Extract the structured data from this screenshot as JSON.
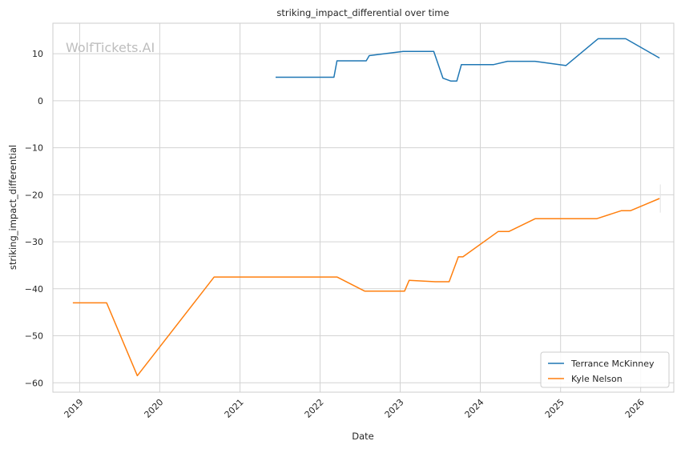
{
  "watermark": "WolfTickets.AI",
  "chart_data": {
    "type": "line",
    "title": "striking_impact_differential over time",
    "xlabel": "Date",
    "ylabel": "striking_impact_differential",
    "xlim": [
      "2018-09-01",
      "2026-06-01"
    ],
    "ylim": [
      -62,
      16.5
    ],
    "x_ticks": [
      "2019-01-01",
      "2020-01-01",
      "2021-01-01",
      "2022-01-01",
      "2023-01-01",
      "2024-01-01",
      "2025-01-01",
      "2026-01-01"
    ],
    "x_tick_labels": [
      "2019",
      "2020",
      "2021",
      "2022",
      "2023",
      "2024",
      "2025",
      "2026"
    ],
    "y_ticks": [
      10,
      0,
      -10,
      -20,
      -30,
      -40,
      -50,
      -60
    ],
    "y_tick_labels": [
      "10",
      "0",
      "−10",
      "−20",
      "−30",
      "−40",
      "−50",
      "−60"
    ],
    "grid": true,
    "legend_position": "lower-right",
    "series": [
      {
        "name": "Terrance McKinney",
        "color": "#1f77b4",
        "points": [
          [
            "2021-06-12",
            5.0
          ],
          [
            "2022-03-05",
            5.0
          ],
          [
            "2022-03-19",
            8.5
          ],
          [
            "2022-07-30",
            8.5
          ],
          [
            "2022-08-13",
            9.6
          ],
          [
            "2023-01-14",
            10.5
          ],
          [
            "2023-06-03",
            10.5
          ],
          [
            "2023-07-15",
            4.8
          ],
          [
            "2023-08-19",
            4.2
          ],
          [
            "2023-09-16",
            4.2
          ],
          [
            "2023-10-07",
            7.7
          ],
          [
            "2024-03-02",
            7.7
          ],
          [
            "2024-05-04",
            8.4
          ],
          [
            "2024-09-07",
            8.4
          ],
          [
            "2025-01-25",
            7.5
          ],
          [
            "2025-06-21",
            13.2
          ],
          [
            "2025-10-25",
            13.2
          ],
          [
            "2026-03-28",
            9.1
          ]
        ]
      },
      {
        "name": "Kyle Nelson",
        "color": "#ff7f0e",
        "points": [
          [
            "2018-12-01",
            -43.0
          ],
          [
            "2019-05-04",
            -43.0
          ],
          [
            "2019-09-21",
            -58.5
          ],
          [
            "2020-09-05",
            -37.5
          ],
          [
            "2022-03-19",
            -37.5
          ],
          [
            "2022-07-23",
            -40.5
          ],
          [
            "2023-01-21",
            -40.5
          ],
          [
            "2023-02-11",
            -38.2
          ],
          [
            "2023-06-10",
            -38.5
          ],
          [
            "2023-08-12",
            -38.5
          ],
          [
            "2023-09-23",
            -33.2
          ],
          [
            "2023-10-14",
            -33.2
          ],
          [
            "2024-03-23",
            -27.8
          ],
          [
            "2024-05-11",
            -27.8
          ],
          [
            "2024-09-07",
            -25.1
          ],
          [
            "2025-06-14",
            -25.1
          ],
          [
            "2025-10-04",
            -23.4
          ],
          [
            "2025-11-15",
            -23.4
          ],
          [
            "2026-03-28",
            -20.8
          ]
        ]
      }
    ]
  }
}
